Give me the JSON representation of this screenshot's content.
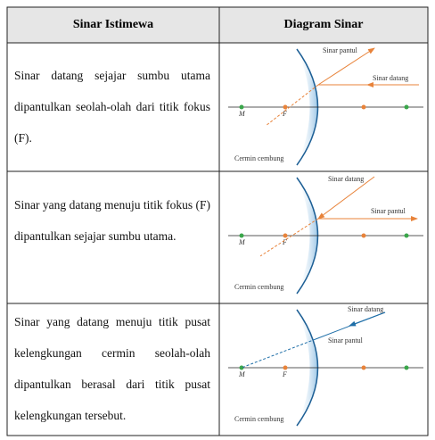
{
  "header": [
    "Sinar Istimewa",
    "Diagram Sinar"
  ],
  "rows": [
    {
      "text": "Sinar datang sejajar sumbu utama dipantulkan seolah-olah dari titik fokus (F).",
      "diagram": {
        "ray_a": "Sinar pantul",
        "ray_b": "Sinar datang",
        "m": "M",
        "f": "F",
        "mirror": "Cermin cembung"
      }
    },
    {
      "text": "Sinar yang datang menuju titik fokus (F) dipantulkan sejajar sumbu utama.",
      "diagram": {
        "ray_a": "Sinar datang",
        "ray_b": "Sinar pantul",
        "m": "M",
        "f": "F",
        "mirror": "Cermin cembung"
      }
    },
    {
      "text": "Sinar yang datang menuju titik pusat kelengkungan cermin seolah-olah dipantulkan berasal dari titik pusat kelengkungan tersebut.",
      "diagram": {
        "ray_a": "Sinar datang",
        "ray_b": "Sinar pantul",
        "m": "M",
        "f": "F",
        "mirror": "Cermin cembung"
      }
    }
  ]
}
